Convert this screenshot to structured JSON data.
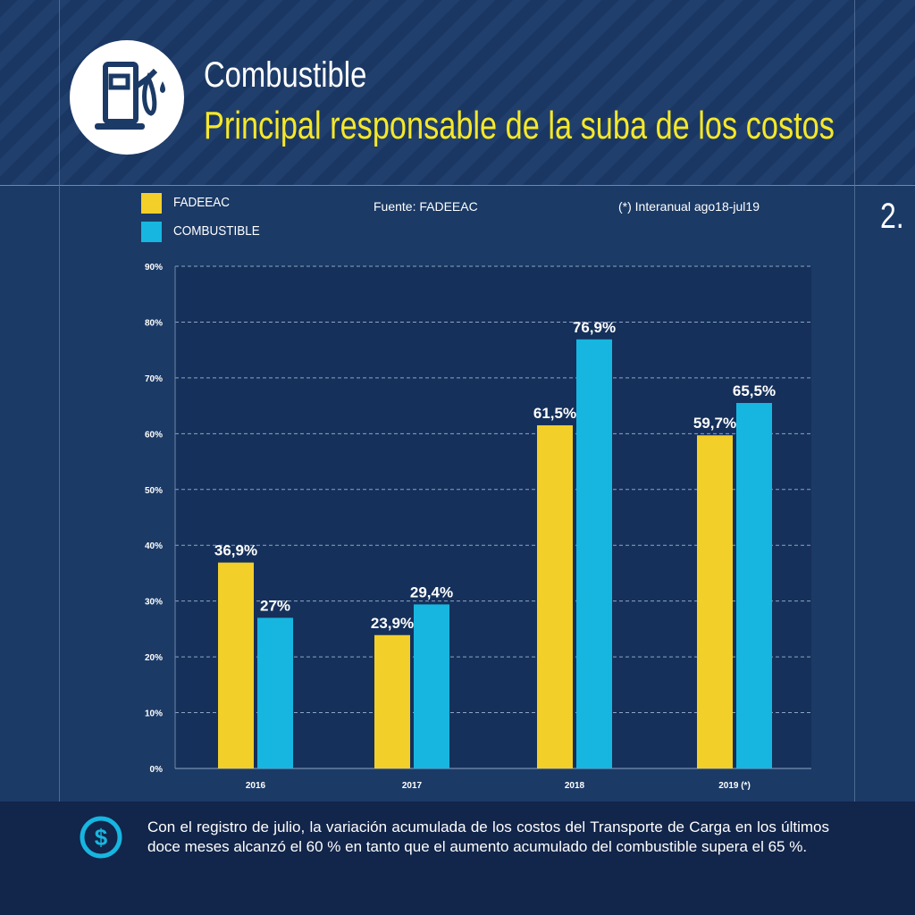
{
  "header": {
    "title": "Combustible",
    "subtitle": "Principal responsable de la suba de los costos",
    "icon": "fuel-pump-icon"
  },
  "page_number": "2.",
  "legend": [
    {
      "label": "FADEEAC",
      "color": "#f3cf2a"
    },
    {
      "label": "COMBUSTIBLE",
      "color": "#17b6e0"
    }
  ],
  "source_note": "Fuente: FADEEAC",
  "footnote": "(*) Interanual ago18-jul19",
  "chart_data": {
    "type": "bar",
    "categories": [
      "2016",
      "2017",
      "2018",
      "2019 (*)"
    ],
    "series": [
      {
        "name": "FADEEAC",
        "values": [
          36.9,
          23.9,
          61.5,
          59.7
        ],
        "labels": [
          "36,9%",
          "23,9%",
          "61,5%",
          "59,7%"
        ],
        "color": "#f3cf2a"
      },
      {
        "name": "COMBUSTIBLE",
        "values": [
          27,
          29.4,
          76.9,
          65.5
        ],
        "labels": [
          "27%",
          "29,4%",
          "76,9%",
          "65,5%"
        ],
        "color": "#17b6e0"
      }
    ],
    "ylim": [
      0,
      90
    ],
    "yticks": [
      "0%",
      "10%",
      "20%",
      "30%",
      "40%",
      "50%",
      "60%",
      "70%",
      "80%",
      "90%"
    ],
    "grid": true,
    "legend_position": "top-left"
  },
  "bottom": {
    "icon": "dollar-coin-icon",
    "text": "Con el registro de julio, la variación acumulada de los costos del Transporte de Carga en los últimos doce meses alcanzó el 60 % en tanto que el aumento acumulado del combustible supera el 65 %."
  }
}
